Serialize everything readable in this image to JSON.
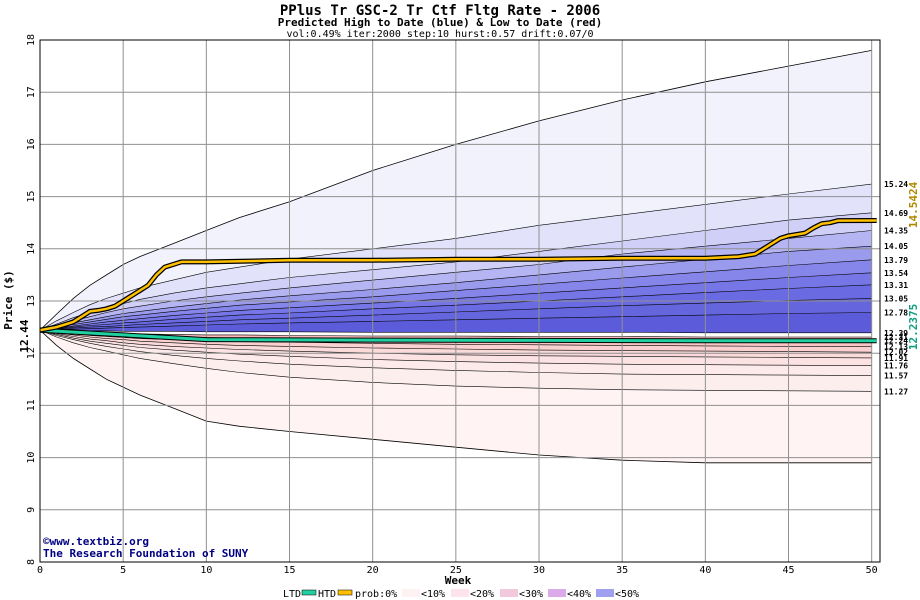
{
  "chart_data": {
    "type": "area",
    "title": "PPlus Tr GSC-2 Tr Ctf Fltg Rate - 2006",
    "subtitle": "Predicted High to Date (blue) &  Low to Date (red)",
    "params": "vol:0.49% iter:2000 step:10 hurst:0.57 drift:0.07/0",
    "xlabel": "Week",
    "ylabel": "Price ($)",
    "xlim": [
      0,
      50.5
    ],
    "ylim": [
      8,
      18
    ],
    "x_ticks": [
      "0",
      "5",
      "10",
      "15",
      "20",
      "25",
      "30",
      "35",
      "40",
      "45",
      "50"
    ],
    "y_ticks": [
      "8",
      "9",
      "10",
      "11",
      "12",
      "13",
      "14",
      "15",
      "16",
      "17",
      "18"
    ],
    "grid": true,
    "start_price": "12.44",
    "weeks": [
      0,
      1,
      2,
      3,
      4,
      5,
      6,
      8,
      10,
      12,
      15,
      20,
      25,
      30,
      35,
      40,
      45,
      50
    ],
    "high_bands": [
      {
        "prob": "0%",
        "end_label": "",
        "values": [
          12.44,
          12.75,
          13.05,
          13.3,
          13.5,
          13.7,
          13.85,
          14.1,
          14.35,
          14.6,
          14.9,
          15.5,
          16.0,
          16.45,
          16.85,
          17.2,
          17.5,
          17.8
        ]
      },
      {
        "prob": "10%",
        "end_label": "15.24",
        "values": [
          12.44,
          12.62,
          12.78,
          12.93,
          13.05,
          13.15,
          13.25,
          13.4,
          13.55,
          13.65,
          13.8,
          14.0,
          14.2,
          14.45,
          14.65,
          14.85,
          15.05,
          15.24
        ]
      },
      {
        "prob": "20%",
        "end_label": "14.69",
        "values": [
          12.44,
          12.56,
          12.68,
          12.78,
          12.87,
          12.95,
          13.03,
          13.15,
          13.25,
          13.33,
          13.45,
          13.6,
          13.75,
          13.95,
          14.15,
          14.35,
          14.55,
          14.69
        ]
      },
      {
        "prob": "30%",
        "end_label": "14.35",
        "values": [
          12.44,
          12.53,
          12.62,
          12.7,
          12.78,
          12.85,
          12.9,
          13.0,
          13.08,
          13.15,
          13.25,
          13.4,
          13.55,
          13.7,
          13.9,
          14.05,
          14.2,
          14.35
        ]
      },
      {
        "prob": "40%",
        "end_label": "14.05",
        "values": [
          12.44,
          12.51,
          12.58,
          12.64,
          12.7,
          12.76,
          12.8,
          12.88,
          12.95,
          13.02,
          13.1,
          13.22,
          13.35,
          13.5,
          13.65,
          13.8,
          13.95,
          14.05
        ]
      },
      {
        "prob": "50%",
        "end_label": "13.79",
        "values": [
          12.44,
          12.5,
          12.55,
          12.6,
          12.65,
          12.7,
          12.73,
          12.8,
          12.86,
          12.92,
          12.98,
          13.08,
          13.2,
          13.32,
          13.44,
          13.56,
          13.68,
          13.79
        ]
      },
      {
        "prob": "60%",
        "end_label": "13.54",
        "values": [
          12.44,
          12.48,
          12.52,
          12.56,
          12.6,
          12.63,
          12.66,
          12.72,
          12.77,
          12.82,
          12.87,
          12.96,
          13.05,
          13.15,
          13.25,
          13.35,
          13.45,
          13.54
        ]
      },
      {
        "prob": "70%",
        "end_label": "13.31",
        "values": [
          12.44,
          12.47,
          12.5,
          12.53,
          12.55,
          12.58,
          12.6,
          12.65,
          12.69,
          12.73,
          12.77,
          12.85,
          12.92,
          13.0,
          13.08,
          13.16,
          13.24,
          13.31
        ]
      },
      {
        "prob": "80%",
        "end_label": "13.05",
        "values": [
          12.44,
          12.46,
          12.48,
          12.5,
          12.51,
          12.53,
          12.55,
          12.58,
          12.61,
          12.64,
          12.67,
          12.73,
          12.79,
          12.85,
          12.91,
          12.96,
          13.01,
          13.05
        ]
      },
      {
        "prob": "90%",
        "end_label": "12.78",
        "values": [
          12.44,
          12.45,
          12.46,
          12.47,
          12.48,
          12.49,
          12.5,
          12.52,
          12.54,
          12.56,
          12.58,
          12.61,
          12.64,
          12.67,
          12.7,
          12.73,
          12.76,
          12.78
        ]
      },
      {
        "prob": "100%",
        "end_label": "12.39",
        "values": [
          12.44,
          12.44,
          12.43,
          12.43,
          12.43,
          12.42,
          12.42,
          12.42,
          12.41,
          12.41,
          12.41,
          12.4,
          12.4,
          12.4,
          12.4,
          12.39,
          12.39,
          12.39
        ]
      }
    ],
    "low_bands": [
      {
        "prob": "100%",
        "end_label": "12.31",
        "values": [
          12.44,
          12.42,
          12.41,
          12.4,
          12.39,
          12.38,
          12.37,
          12.36,
          12.35,
          12.35,
          12.34,
          12.33,
          12.33,
          12.32,
          12.32,
          12.31,
          12.31,
          12.31
        ]
      },
      {
        "prob": "90%",
        "end_label": "12.24",
        "values": [
          12.44,
          12.41,
          12.39,
          12.37,
          12.35,
          12.34,
          12.33,
          12.31,
          12.3,
          12.29,
          12.28,
          12.27,
          12.26,
          12.25,
          12.25,
          12.24,
          12.24,
          12.24
        ]
      },
      {
        "prob": "80%",
        "end_label": "12.13",
        "values": [
          12.44,
          12.4,
          12.37,
          12.34,
          12.32,
          12.3,
          12.28,
          12.26,
          12.24,
          12.22,
          12.21,
          12.19,
          12.17,
          12.16,
          12.15,
          12.14,
          12.13,
          12.13
        ]
      },
      {
        "prob": "70%",
        "end_label": "12.02",
        "values": [
          12.44,
          12.39,
          12.35,
          12.31,
          12.28,
          12.26,
          12.23,
          12.2,
          12.17,
          12.15,
          12.13,
          12.1,
          12.08,
          12.06,
          12.05,
          12.04,
          12.03,
          12.02
        ]
      },
      {
        "prob": "60%",
        "end_label": "11.91",
        "values": [
          12.44,
          12.38,
          12.32,
          12.27,
          12.24,
          12.2,
          12.17,
          12.13,
          12.1,
          12.07,
          12.04,
          12.0,
          11.97,
          11.95,
          11.94,
          11.93,
          11.92,
          11.91
        ]
      },
      {
        "prob": "50%",
        "end_label": "11.76",
        "values": [
          12.44,
          12.36,
          12.29,
          12.23,
          12.19,
          12.15,
          12.11,
          12.06,
          12.02,
          11.98,
          11.94,
          11.88,
          11.84,
          11.81,
          11.79,
          11.78,
          11.77,
          11.76
        ]
      },
      {
        "prob": "40%",
        "end_label": "11.57",
        "values": [
          12.44,
          12.34,
          12.26,
          12.19,
          12.13,
          12.08,
          12.03,
          11.96,
          11.9,
          11.85,
          11.79,
          11.72,
          11.67,
          11.63,
          11.6,
          11.59,
          11.58,
          11.57
        ]
      },
      {
        "prob": "30%",
        "end_label": "11.27",
        "values": [
          12.44,
          12.31,
          12.2,
          12.11,
          12.04,
          11.97,
          11.9,
          11.8,
          11.71,
          11.63,
          11.54,
          11.44,
          11.37,
          11.33,
          11.3,
          11.29,
          11.28,
          11.27
        ]
      },
      {
        "prob": "0%",
        "end_label": "",
        "values": [
          12.44,
          12.15,
          11.9,
          11.7,
          11.5,
          11.35,
          11.2,
          10.95,
          10.7,
          10.6,
          10.5,
          10.35,
          10.2,
          10.05,
          9.95,
          9.9,
          9.9,
          9.9
        ]
      }
    ],
    "htd_line": {
      "x": [
        0,
        1,
        1.5,
        2,
        2.5,
        3,
        3.5,
        4,
        4.5,
        5,
        5.5,
        6,
        6.5,
        7,
        7.5,
        8,
        8.5,
        10,
        15,
        20,
        25,
        30,
        35,
        40,
        42,
        43,
        43.5,
        44,
        44.5,
        45,
        46,
        46.5,
        47,
        47.5,
        48,
        50.3
      ],
      "y": [
        12.44,
        12.5,
        12.55,
        12.6,
        12.7,
        12.8,
        12.82,
        12.85,
        12.9,
        13.0,
        13.1,
        13.2,
        13.3,
        13.5,
        13.65,
        13.7,
        13.75,
        13.75,
        13.78,
        13.78,
        13.8,
        13.8,
        13.82,
        13.82,
        13.85,
        13.9,
        14.0,
        14.1,
        14.2,
        14.25,
        14.3,
        14.4,
        14.48,
        14.5,
        14.54,
        14.5424
      ]
    },
    "ltd_line": {
      "x": [
        0,
        10,
        20,
        30,
        40,
        50.3
      ],
      "y": [
        12.44,
        12.26,
        12.25,
        12.245,
        12.24,
        12.2375
      ]
    },
    "htd_value_label": "14.5424",
    "ltd_value_label": "12.2375",
    "credit": [
      "©www.textbiz.org",
      "The Research Foundation of SUNY"
    ],
    "legend": {
      "ltd": "LTD",
      "htd": "HTD",
      "prob": "prob:0%",
      "items": [
        "<10%",
        "<20%",
        "<30%",
        "<40%",
        "<50%"
      ]
    },
    "colors": {
      "htd": "#ffc000",
      "ltd": "#20d0a0",
      "blue_bands": [
        "#f2f2fd",
        "#e2e2fb",
        "#cfcff8",
        "#b5b5f3",
        "#9b9bee",
        "#8585ea",
        "#7676e6",
        "#6a6ae2",
        "#6565de",
        "#5c5cda"
      ],
      "red_bands": [
        "#f8b8b8",
        "#f9c5c5",
        "#fad0d0",
        "#fbdada",
        "#fce3e3",
        "#fdeaea",
        "#fdeeee",
        "#fff3f3"
      ],
      "legend_swatches": [
        "#fff2f2",
        "#fde4ec",
        "#f2c8dc",
        "#dcaae8",
        "#a0a0f0"
      ]
    }
  }
}
